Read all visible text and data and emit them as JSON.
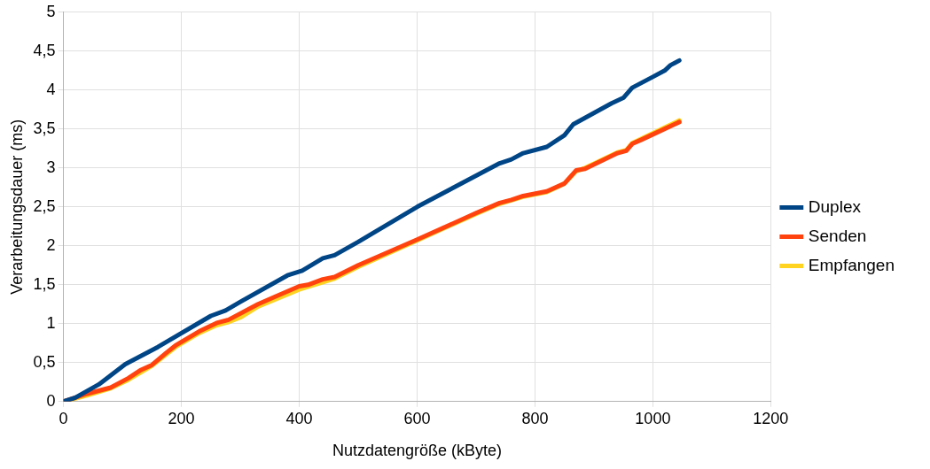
{
  "chart_data": {
    "type": "line",
    "xlabel": "Nutzdatengröße (kByte)",
    "ylabel": "Verarbeitungsdauer (ms)",
    "xlim": [
      0,
      1200
    ],
    "xticks": [
      0,
      200,
      400,
      600,
      800,
      1000,
      1200
    ],
    "ylim": [
      0,
      5
    ],
    "yticks": [
      {
        "value": 0,
        "label": "0"
      },
      {
        "value": 0.5,
        "label": "0,5"
      },
      {
        "value": 1,
        "label": "1"
      },
      {
        "value": 1.5,
        "label": "1,5"
      },
      {
        "value": 2,
        "label": "2"
      },
      {
        "value": 2.5,
        "label": "2,5"
      },
      {
        "value": 3,
        "label": "3"
      },
      {
        "value": 3.5,
        "label": "3,5"
      },
      {
        "value": 4,
        "label": "4"
      },
      {
        "value": 4.5,
        "label": "4,5"
      },
      {
        "value": 5,
        "label": "5"
      }
    ],
    "grid": true,
    "legend": "right",
    "marker": "none",
    "line_style": "solid",
    "series": [
      {
        "name": "Duplex",
        "color": "#004586",
        "x": [
          0,
          20,
          60,
          105,
          160,
          250,
          275,
          300,
          380,
          405,
          440,
          460,
          500,
          600,
          740,
          760,
          780,
          820,
          850,
          865,
          930,
          950,
          965,
          1000,
          1020,
          1030,
          1045
        ],
        "values": [
          0,
          0.05,
          0.22,
          0.48,
          0.7,
          1.1,
          1.17,
          1.28,
          1.62,
          1.68,
          1.84,
          1.88,
          2.05,
          2.5,
          3.06,
          3.11,
          3.19,
          3.27,
          3.42,
          3.56,
          3.83,
          3.9,
          4.03,
          4.17,
          4.25,
          4.32,
          4.38
        ]
      },
      {
        "name": "Senden",
        "color": "#ff420e",
        "x": [
          0,
          40,
          80,
          110,
          130,
          150,
          175,
          190,
          230,
          260,
          280,
          330,
          360,
          400,
          415,
          440,
          460,
          500,
          600,
          700,
          740,
          760,
          780,
          820,
          850,
          870,
          885,
          940,
          955,
          965,
          980,
          1045
        ],
        "values": [
          0,
          0.1,
          0.18,
          0.3,
          0.4,
          0.47,
          0.63,
          0.72,
          0.9,
          1.01,
          1.05,
          1.25,
          1.35,
          1.48,
          1.5,
          1.57,
          1.6,
          1.75,
          2.08,
          2.42,
          2.55,
          2.59,
          2.64,
          2.7,
          2.8,
          2.97,
          2.99,
          3.19,
          3.22,
          3.31,
          3.36,
          3.59
        ]
      },
      {
        "name": "Empfangen",
        "color": "#ffd320",
        "x": [
          0,
          40,
          80,
          110,
          150,
          190,
          230,
          260,
          280,
          300,
          330,
          400,
          460,
          500,
          600,
          700,
          740,
          780,
          820,
          850,
          870,
          885,
          940,
          955,
          965,
          1045
        ],
        "values": [
          0,
          0.08,
          0.17,
          0.28,
          0.46,
          0.7,
          0.88,
          0.98,
          1.02,
          1.08,
          1.22,
          1.44,
          1.58,
          1.73,
          2.07,
          2.41,
          2.54,
          2.63,
          2.69,
          2.8,
          2.96,
          3.0,
          3.2,
          3.23,
          3.32,
          3.61
        ]
      }
    ]
  }
}
